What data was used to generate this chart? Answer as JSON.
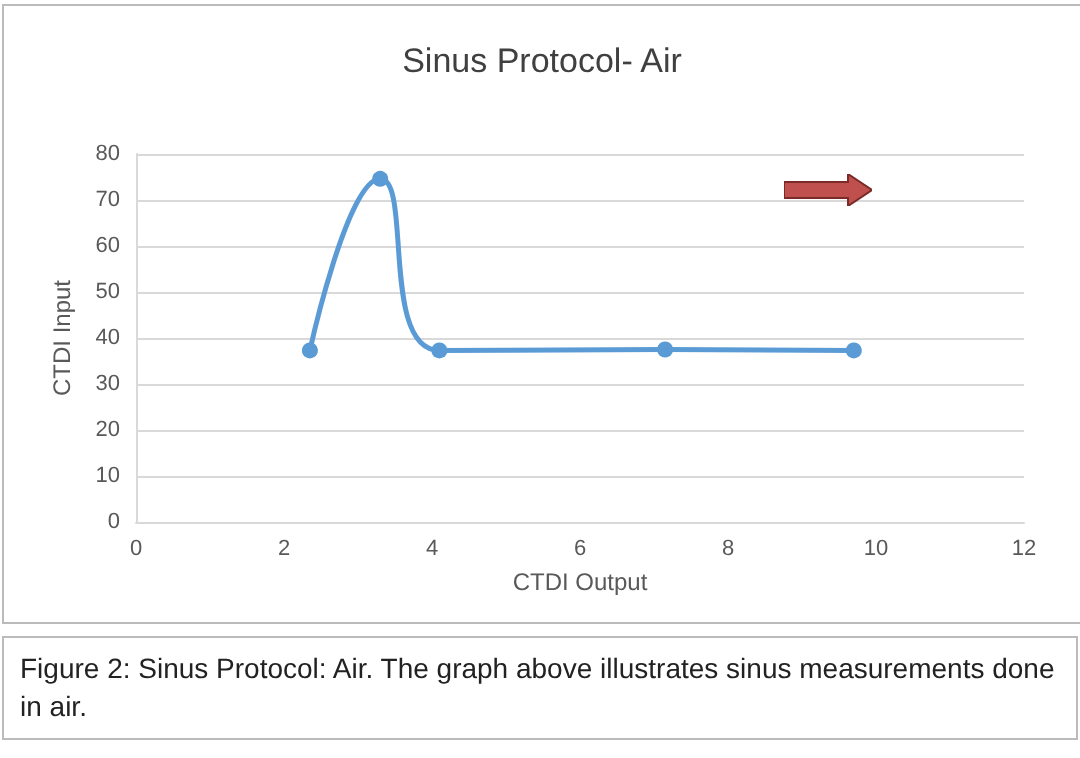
{
  "chart_data": {
    "type": "line",
    "title": "Sinus Protocol- Air",
    "xlabel": "CTDI Output",
    "ylabel": "CTDI Input",
    "x": [
      2.35,
      3.3,
      4.1,
      7.15,
      9.7
    ],
    "series": [
      {
        "color": "#5b9bd5",
        "values": [
          37.3,
          74.6,
          37.3,
          37.5,
          37.3
        ]
      }
    ],
    "xlim": [
      0,
      12
    ],
    "xticks": [
      0,
      2,
      4,
      6,
      8,
      10,
      12
    ],
    "ylim": [
      0,
      80
    ],
    "yticks": [
      0,
      10,
      20,
      30,
      40,
      50,
      60,
      70,
      80
    ],
    "grid": "y",
    "marker": "circle",
    "line_style": "solid",
    "annotations": [
      "Figure 2: Sinus Protocol: Air. The graph above illustrates sinus measurements done in air."
    ]
  }
}
